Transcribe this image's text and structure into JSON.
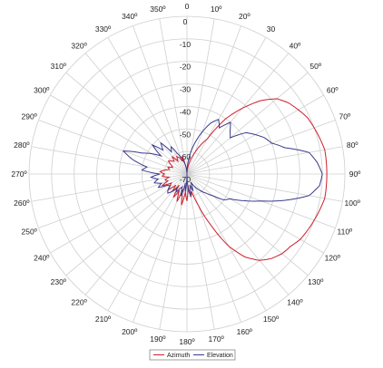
{
  "chart_data": {
    "type": "line",
    "subtype": "polar",
    "title": "",
    "radial_axis": {
      "min": -70,
      "max": 0,
      "tick_labels": [
        "0",
        "-10",
        "-20",
        "-30",
        "-40",
        "-50",
        "-60",
        "-70"
      ],
      "tick_values": [
        0,
        -10,
        -20,
        -30,
        -40,
        -50,
        -60,
        -70
      ]
    },
    "angular_axis": {
      "direction": "clockwise",
      "zero": "top",
      "step_deg": 10,
      "tick_labels": [
        "0",
        "10º",
        "20º",
        "30",
        "40º",
        "50º",
        "60º",
        "70º",
        "80º",
        "90º",
        "100º",
        "110º",
        "120º",
        "130º",
        "140º",
        "150º",
        "160º",
        "170º",
        "180º",
        "190º",
        "200º",
        "210º",
        "220º",
        "230º",
        "240º",
        "250º",
        "260º",
        "270º",
        "280º",
        "290º",
        "300º",
        "310º",
        "320º",
        "330º",
        "340º",
        "350º"
      ]
    },
    "grid": true,
    "legend_position": "bottom-center",
    "series": [
      {
        "name": "Azimuth",
        "color": "#cc1f2d",
        "angles_deg": [
          0,
          10,
          20,
          30,
          35,
          40,
          45,
          50,
          55,
          60,
          65,
          70,
          75,
          80,
          85,
          90,
          95,
          100,
          105,
          110,
          115,
          120,
          125,
          130,
          135,
          140,
          145,
          150,
          155,
          160,
          165,
          170,
          175,
          180,
          185,
          190,
          195,
          200,
          205,
          210,
          215,
          220,
          225,
          230,
          235,
          240,
          245,
          250,
          255,
          260,
          265,
          270,
          275,
          280,
          285,
          290,
          295,
          300,
          305,
          310,
          315,
          320,
          325,
          330,
          335,
          340,
          345,
          350,
          355
        ],
        "values": [
          -70,
          -66,
          -60,
          -52,
          -40,
          -32,
          -24,
          -18,
          -15,
          -13,
          -11,
          -10,
          -9,
          -8,
          -8,
          -8,
          -8,
          -8,
          -9,
          -10,
          -11,
          -12,
          -14,
          -15,
          -17,
          -20,
          -25,
          -33,
          -45,
          -55,
          -62,
          -60,
          -65,
          -58,
          -62,
          -56,
          -63,
          -57,
          -62,
          -58,
          -64,
          -60,
          -63,
          -59,
          -61,
          -62,
          -58,
          -61,
          -60,
          -62,
          -59,
          -60,
          -58,
          -60,
          -62,
          -61,
          -63,
          -62,
          -60,
          -61,
          -62,
          -60,
          -63,
          -61,
          -62,
          -64,
          -62,
          -66,
          -68
        ]
      },
      {
        "name": "Elevation",
        "color": "#3a3a8c",
        "angles_deg": [
          0,
          5,
          10,
          15,
          20,
          25,
          30,
          35,
          40,
          45,
          50,
          55,
          60,
          65,
          70,
          75,
          80,
          85,
          90,
          95,
          100,
          105,
          110,
          115,
          120,
          125,
          130,
          135,
          140,
          145,
          150,
          155,
          160,
          165,
          170,
          175,
          180,
          185,
          190,
          195,
          200,
          205,
          210,
          215,
          220,
          225,
          230,
          235,
          240,
          245,
          250,
          255,
          260,
          265,
          270,
          275,
          280,
          285,
          290,
          295,
          300,
          305,
          310,
          315,
          320,
          325,
          330,
          335,
          340,
          345,
          350,
          355
        ],
        "values": [
          -70,
          -65,
          -60,
          -55,
          -50,
          -45,
          -42,
          -45,
          -40,
          -43,
          -45,
          -38,
          -35,
          -32,
          -30,
          -25,
          -15,
          -12,
          -10,
          -11,
          -15,
          -25,
          -35,
          -42,
          -48,
          -50,
          -55,
          -58,
          -60,
          -62,
          -64,
          -66,
          -62,
          -65,
          -60,
          -63,
          -70,
          -62,
          -66,
          -60,
          -64,
          -63,
          -61,
          -62,
          -60,
          -58,
          -59,
          -61,
          -60,
          -56,
          -58,
          -55,
          -57,
          -54,
          -58,
          -50,
          -52,
          -45,
          -40,
          -48,
          -52,
          -56,
          -50,
          -55,
          -52,
          -58,
          -56,
          -60,
          -62,
          -64,
          -66,
          -68
        ]
      }
    ]
  }
}
